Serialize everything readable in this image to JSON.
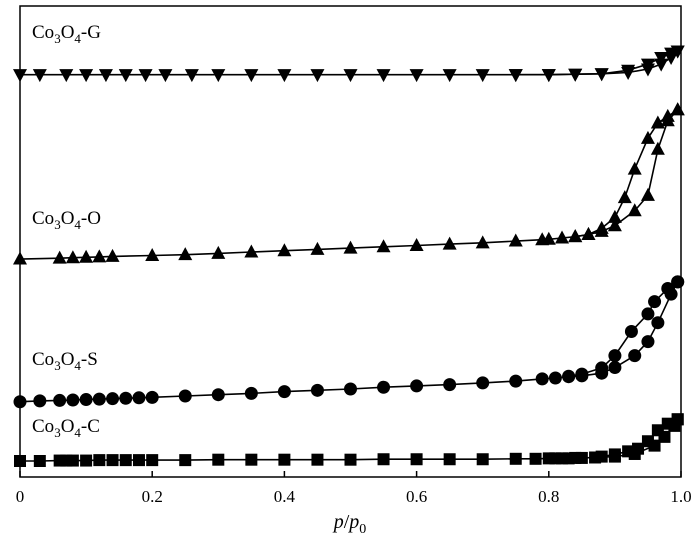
{
  "chart_data": {
    "type": "line",
    "title": "",
    "xlabel": "p/p0",
    "ylabel": "",
    "xlim": [
      0,
      1.0
    ],
    "ylim": [
      0,
      100
    ],
    "yticks_shown": false,
    "grid": false,
    "legend": "none",
    "xticks": [
      "0",
      "0.2",
      "0.4",
      "0.6",
      "0.8",
      "1.0"
    ],
    "series": [
      {
        "name": "Co3O4-G",
        "marker": "triangle-down",
        "adsorption": {
          "x": [
            0.0,
            0.03,
            0.07,
            0.1,
            0.13,
            0.16,
            0.19,
            0.22,
            0.26,
            0.3,
            0.35,
            0.4,
            0.45,
            0.5,
            0.55,
            0.6,
            0.65,
            0.7,
            0.75,
            0.8,
            0.84,
            0.88,
            0.92,
            0.95,
            0.97,
            0.985,
            0.995
          ],
          "y": [
            88.0,
            88.0,
            88.0,
            88.0,
            88.0,
            88.0,
            88.0,
            88.0,
            88.0,
            88.0,
            88.0,
            88.0,
            88.0,
            88.0,
            88.0,
            88.0,
            88.0,
            88.0,
            88.0,
            88.0,
            88.1,
            88.2,
            88.5,
            89.3,
            90.4,
            91.9,
            93.4
          ]
        },
        "desorption": {
          "x": [
            0.995,
            0.985,
            0.97,
            0.95,
            0.92,
            0.88,
            0.84,
            0.8,
            0.75
          ],
          "y": [
            93.4,
            92.9,
            91.9,
            90.4,
            89.0,
            88.2,
            88.1,
            88.0,
            88.0
          ]
        }
      },
      {
        "name": "Co3O4-O",
        "marker": "triangle-up",
        "adsorption": {
          "x": [
            0.0,
            0.06,
            0.08,
            0.1,
            0.12,
            0.14,
            0.2,
            0.25,
            0.3,
            0.35,
            0.4,
            0.45,
            0.5,
            0.55,
            0.6,
            0.65,
            0.7,
            0.75,
            0.79,
            0.8,
            0.82,
            0.84,
            0.86,
            0.88,
            0.9,
            0.93,
            0.95,
            0.965,
            0.98,
            0.995
          ],
          "y": [
            46.0,
            46.2,
            46.3,
            46.4,
            46.5,
            46.6,
            46.8,
            47.0,
            47.3,
            47.6,
            47.9,
            48.2,
            48.5,
            48.8,
            49.1,
            49.4,
            49.7,
            50.1,
            50.4,
            50.5,
            50.8,
            51.1,
            51.6,
            52.3,
            53.6,
            57.0,
            60.5,
            71.0,
            77.5,
            80.0
          ]
        },
        "desorption": {
          "x": [
            0.995,
            0.98,
            0.965,
            0.95,
            0.93,
            0.915,
            0.9,
            0.88,
            0.86,
            0.84
          ],
          "y": [
            80.0,
            78.5,
            77.0,
            73.5,
            66.5,
            60.0,
            55.5,
            53.0,
            51.6,
            51.1
          ]
        }
      },
      {
        "name": "Co3O4-S",
        "marker": "circle",
        "adsorption": {
          "x": [
            0.0,
            0.03,
            0.06,
            0.08,
            0.1,
            0.12,
            0.14,
            0.16,
            0.18,
            0.2,
            0.25,
            0.3,
            0.35,
            0.4,
            0.45,
            0.5,
            0.55,
            0.6,
            0.65,
            0.7,
            0.75,
            0.79,
            0.81,
            0.83,
            0.85,
            0.88,
            0.9,
            0.93,
            0.95,
            0.965,
            0.985,
            0.995
          ],
          "y": [
            13.5,
            13.7,
            13.8,
            13.9,
            14.0,
            14.1,
            14.2,
            14.3,
            14.4,
            14.5,
            14.8,
            15.1,
            15.4,
            15.8,
            16.1,
            16.4,
            16.8,
            17.1,
            17.4,
            17.8,
            18.2,
            18.7,
            18.9,
            19.2,
            19.4,
            20.0,
            21.3,
            24.0,
            27.2,
            31.5,
            38.0,
            40.8
          ]
        },
        "desorption": {
          "x": [
            0.995,
            0.98,
            0.96,
            0.95,
            0.925,
            0.9,
            0.88,
            0.85,
            0.83
          ],
          "y": [
            40.8,
            39.3,
            36.3,
            33.5,
            29.5,
            24.0,
            21.2,
            19.8,
            19.3
          ]
        }
      },
      {
        "name": "Co3O4-C",
        "marker": "square",
        "adsorption": {
          "x": [
            0.0,
            0.03,
            0.06,
            0.07,
            0.08,
            0.1,
            0.12,
            0.14,
            0.16,
            0.18,
            0.2,
            0.25,
            0.3,
            0.35,
            0.4,
            0.45,
            0.5,
            0.55,
            0.6,
            0.65,
            0.7,
            0.75,
            0.78,
            0.8,
            0.81,
            0.82,
            0.83,
            0.84,
            0.85,
            0.87,
            0.9,
            0.93,
            0.96,
            0.975,
            0.99,
            0.995
          ],
          "y": [
            0.0,
            0.0,
            0.1,
            0.1,
            0.1,
            0.1,
            0.2,
            0.2,
            0.2,
            0.2,
            0.2,
            0.2,
            0.3,
            0.3,
            0.3,
            0.3,
            0.3,
            0.4,
            0.4,
            0.4,
            0.4,
            0.5,
            0.5,
            0.6,
            0.6,
            0.6,
            0.6,
            0.7,
            0.7,
            0.8,
            1.0,
            1.6,
            3.5,
            5.5,
            8.0,
            9.5
          ]
        },
        "desorption": {
          "x": [
            0.995,
            0.98,
            0.965,
            0.95,
            0.935,
            0.92,
            0.9,
            0.88
          ],
          "y": [
            9.5,
            8.5,
            7.0,
            4.5,
            2.8,
            2.2,
            1.5,
            1.0
          ]
        }
      }
    ]
  },
  "labels": {
    "series_G": {
      "base": "Co",
      "sub1": "3",
      "mid": "O",
      "sub2": "4",
      "suffix": "-G"
    },
    "series_O": {
      "base": "Co",
      "sub1": "3",
      "mid": "O",
      "sub2": "4",
      "suffix": "-O"
    },
    "series_S": {
      "base": "Co",
      "sub1": "3",
      "mid": "O",
      "sub2": "4",
      "suffix": "-S"
    },
    "series_C": {
      "base": "Co",
      "sub1": "3",
      "mid": "O",
      "sub2": "4",
      "suffix": "-C"
    },
    "xaxis": {
      "p1": "p",
      "slash": "/",
      "p2": "p",
      "sub": "0"
    }
  }
}
